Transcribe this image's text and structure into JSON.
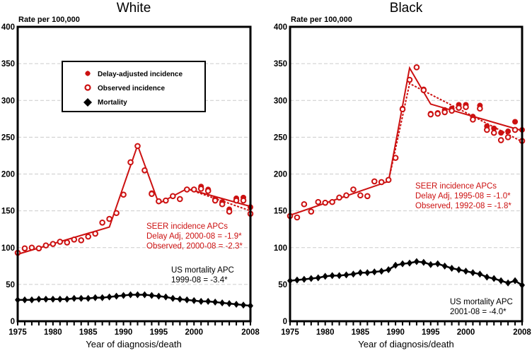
{
  "colors": {
    "incidence": "#cc1111",
    "mortality": "#000000",
    "grid": "#cccccc"
  },
  "chart_data": [
    {
      "type": "scatter",
      "title": "White",
      "ylabel": "Rate per 100,000",
      "xlabel": "Year of diagnosis/death",
      "xlim": [
        1975,
        2008
      ],
      "ylim": [
        0,
        400
      ],
      "yticks": [
        0,
        50,
        100,
        150,
        200,
        250,
        300,
        350,
        400
      ],
      "xticks": [
        1975,
        1980,
        1985,
        1990,
        1995,
        2000,
        2008
      ],
      "grid": true,
      "legend_position": "top-left",
      "legend": [
        {
          "label": "Delay-adjusted incidence",
          "marker": "filled-circle",
          "color": "#cc1111"
        },
        {
          "label": "Observed incidence",
          "marker": "open-circle",
          "color": "#cc1111"
        },
        {
          "label": "Mortality",
          "marker": "diamond",
          "color": "#000000"
        }
      ],
      "x": [
        1975,
        1976,
        1977,
        1978,
        1979,
        1980,
        1981,
        1982,
        1983,
        1984,
        1985,
        1986,
        1987,
        1988,
        1989,
        1990,
        1991,
        1992,
        1993,
        1994,
        1995,
        1996,
        1997,
        1998,
        1999,
        2000,
        2001,
        2002,
        2003,
        2004,
        2005,
        2006,
        2007,
        2008
      ],
      "series": [
        {
          "name": "Delay-adjusted incidence",
          "marker": "filled-circle",
          "values": [
            93,
            99,
            100,
            99,
            103,
            105,
            108,
            107,
            111,
            110,
            115,
            119,
            134,
            139,
            147,
            172,
            216,
            238,
            205,
            174,
            163,
            164,
            170,
            166,
            179,
            179,
            183,
            179,
            166,
            162,
            152,
            167,
            168,
            155
          ]
        },
        {
          "name": "Observed incidence",
          "marker": "open-circle",
          "values": [
            93,
            99,
            100,
            99,
            103,
            105,
            108,
            107,
            111,
            110,
            115,
            119,
            134,
            139,
            147,
            172,
            216,
            238,
            205,
            173,
            163,
            164,
            170,
            166,
            179,
            179,
            180,
            177,
            164,
            159,
            149,
            164,
            164,
            146
          ]
        },
        {
          "name": "Delay-adjusted trend",
          "style": "solid",
          "points": [
            [
              1975,
              91
            ],
            [
              1988,
              128
            ],
            [
              1992,
              239
            ],
            [
              1995,
              160
            ],
            [
              1999,
              180
            ],
            [
              2008,
              156
            ]
          ]
        },
        {
          "name": "Observed trend",
          "style": "dashed",
          "points": [
            [
              1999,
              180
            ],
            [
              2008,
              150
            ]
          ]
        },
        {
          "name": "Mortality",
          "marker": "diamond",
          "values": [
            29,
            29,
            29,
            30,
            30,
            30,
            30,
            30,
            31,
            31,
            31,
            32,
            32,
            33,
            34,
            35,
            36,
            36,
            36,
            35,
            34,
            33,
            31,
            30,
            29,
            28,
            27,
            27,
            26,
            25,
            24,
            23,
            22,
            21
          ]
        }
      ],
      "annotations": {
        "incidence": [
          "SEER incidence APCs",
          "Delay Adj, 2000-08 = -1.9*",
          "Observed, 2000-08 = -2.3*"
        ],
        "mortality": [
          "US mortality APC",
          "1999-08 = -3.4*"
        ]
      }
    },
    {
      "type": "scatter",
      "title": "Black",
      "ylabel": "Rate per 100,000",
      "xlabel": "Year of diagnosis/death",
      "xlim": [
        1975,
        2008
      ],
      "ylim": [
        0,
        400
      ],
      "yticks": [
        0,
        50,
        100,
        150,
        200,
        250,
        300,
        350,
        400
      ],
      "xticks": [
        1975,
        1980,
        1985,
        1990,
        1995,
        2000,
        2008
      ],
      "grid": true,
      "x": [
        1975,
        1976,
        1977,
        1978,
        1979,
        1980,
        1981,
        1982,
        1983,
        1984,
        1985,
        1986,
        1987,
        1988,
        1989,
        1990,
        1991,
        1992,
        1993,
        1994,
        1995,
        1996,
        1997,
        1998,
        1999,
        2000,
        2001,
        2002,
        2003,
        2004,
        2005,
        2006,
        2007,
        2008
      ],
      "series": [
        {
          "name": "Delay-adjusted incidence",
          "marker": "filled-circle",
          "values": [
            143,
            141,
            159,
            149,
            162,
            161,
            162,
            168,
            171,
            179,
            171,
            170,
            190,
            189,
            192,
            222,
            289,
            328,
            345,
            315,
            282,
            283,
            287,
            289,
            294,
            294,
            278,
            293,
            265,
            262,
            256,
            258,
            271,
            260
          ]
        },
        {
          "name": "Observed incidence",
          "marker": "open-circle",
          "values": [
            143,
            141,
            159,
            149,
            162,
            161,
            162,
            168,
            171,
            179,
            171,
            170,
            190,
            189,
            192,
            222,
            288,
            328,
            345,
            314,
            281,
            282,
            284,
            286,
            290,
            291,
            274,
            289,
            260,
            256,
            246,
            250,
            260,
            245
          ]
        },
        {
          "name": "Delay-adjusted trend",
          "style": "solid",
          "points": [
            [
              1975,
              144
            ],
            [
              1989,
              190
            ],
            [
              1992,
              344
            ],
            [
              1995,
              295
            ],
            [
              2008,
              259
            ]
          ]
        },
        {
          "name": "Observed trend",
          "style": "dashed",
          "points": [
            [
              1989,
              190
            ],
            [
              1992,
              323
            ],
            [
              2008,
              244
            ]
          ]
        },
        {
          "name": "Mortality",
          "marker": "diamond",
          "values": [
            55,
            56,
            57,
            58,
            59,
            61,
            62,
            62,
            63,
            64,
            66,
            66,
            67,
            68,
            70,
            76,
            78,
            79,
            81,
            80,
            77,
            78,
            75,
            72,
            70,
            68,
            66,
            64,
            60,
            58,
            55,
            52,
            55,
            49
          ]
        }
      ],
      "annotations": {
        "incidence": [
          "SEER incidence APCs",
          "Delay Adj, 1995-08 = -1.0*",
          "Observed, 1992-08 = -1.8*"
        ],
        "mortality": [
          "US mortality APC",
          "2001-08 = -4.0*"
        ]
      }
    }
  ]
}
